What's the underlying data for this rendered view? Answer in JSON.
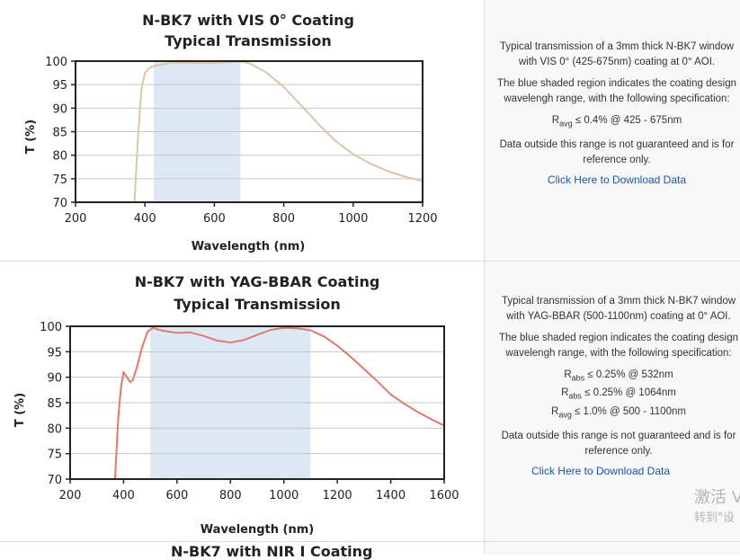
{
  "chart_data": [
    {
      "type": "line",
      "title": "N-BK7 with VIS 0° Coating",
      "subtitle": "Typical Transmission",
      "xlabel": "Wavelength (nm)",
      "ylabel": "T (%)",
      "xlim": [
        200,
        1200
      ],
      "ylim": [
        70,
        100
      ],
      "xticks": [
        "200",
        "400",
        "600",
        "800",
        "1000",
        "1200"
      ],
      "yticks": [
        "70",
        "75",
        "80",
        "85",
        "90",
        "95",
        "100"
      ],
      "shaded_region": [
        425,
        675
      ],
      "line_color": "#dcc6a3",
      "shade_color": "#dce9f5",
      "grid": true,
      "series": [
        {
          "x": [
            370,
            380,
            390,
            400,
            410,
            420,
            430,
            450,
            475,
            500,
            550,
            600,
            650,
            675,
            700,
            750,
            800,
            850,
            900,
            950,
            1000,
            1050,
            1100,
            1150,
            1200
          ],
          "values": [
            70,
            84,
            94,
            97.5,
            98.4,
            98.8,
            99,
            99.3,
            99.6,
            99.7,
            99.6,
            99.6,
            99.8,
            99.9,
            99.6,
            97.6,
            94.5,
            90.6,
            86.6,
            83,
            80.2,
            78.2,
            76.6,
            75.4,
            74.5
          ]
        }
      ]
    },
    {
      "type": "line",
      "title": "N-BK7 with YAG-BBAR Coating",
      "subtitle": "Typical Transmission",
      "xlabel": "Wavelength (nm)",
      "ylabel": "T (%)",
      "xlim": [
        200,
        1600
      ],
      "ylim": [
        70,
        100
      ],
      "xticks": [
        "200",
        "400",
        "600",
        "800",
        "1000",
        "1200",
        "1400",
        "1600"
      ],
      "yticks": [
        "70",
        "75",
        "80",
        "85",
        "90",
        "95",
        "100"
      ],
      "shaded_region": [
        500,
        1100
      ],
      "line_color": "#e07a6a",
      "shade_color": "#dce9f5",
      "grid": true,
      "series": [
        {
          "x": [
            368,
            380,
            390,
            400,
            415,
            425,
            435,
            450,
            470,
            490,
            510,
            540,
            600,
            650,
            700,
            750,
            800,
            850,
            900,
            950,
            1000,
            1050,
            1100,
            1150,
            1200,
            1250,
            1300,
            1350,
            1400,
            1450,
            1500,
            1550,
            1600
          ],
          "values": [
            70,
            82,
            88,
            91,
            89.8,
            89,
            89.5,
            92,
            96,
            99,
            99.7,
            99.2,
            98.7,
            98.8,
            98.1,
            97.2,
            96.8,
            97.3,
            98.3,
            99.3,
            99.7,
            99.6,
            99.2,
            98,
            96.2,
            94,
            91.6,
            89.2,
            86.6,
            84.8,
            83.2,
            81.8,
            80.5
          ]
        }
      ]
    }
  ],
  "desc1": {
    "p1": "Typical transmission of a 3mm thick N-BK7 window with VIS 0° (425-675nm) coating at 0° AOI.",
    "p2": "The blue shaded region indicates the coating design wavelengh range, with the following specification:",
    "spec1_r": "R",
    "spec1_sub": "avg",
    "spec1_rest": " ≤ 0.4% @ 425 - 675nm",
    "p3": "Data outside this range is not guaranteed and is for reference only.",
    "link": "Click Here to Download Data"
  },
  "desc2": {
    "p1": "Typical transmission of a 3mm thick N-BK7 window with YAG-BBAR (500-1100nm) coating at 0° AOI.",
    "p2": "The blue shaded region indicates the coating design wavelengh range, with the following specification:",
    "spec1_r": "R",
    "spec1_sub": "abs",
    "spec1_rest": " ≤ 0.25% @ 532nm",
    "spec2_r": "R",
    "spec2_sub": "abs",
    "spec2_rest": " ≤ 0.25% @ 1064nm",
    "spec3_r": "R",
    "spec3_sub": "avg",
    "spec3_rest": " ≤ 1.0% @ 500 - 1100nm",
    "p3": "Data outside this range is not guaranteed and is for reference only.",
    "link": "Click Here to Download Data"
  },
  "next_title_partial": "N-BK7 with NIR I Coating",
  "watermark": {
    "line1": "激活 V",
    "line2": "转到\"设"
  }
}
